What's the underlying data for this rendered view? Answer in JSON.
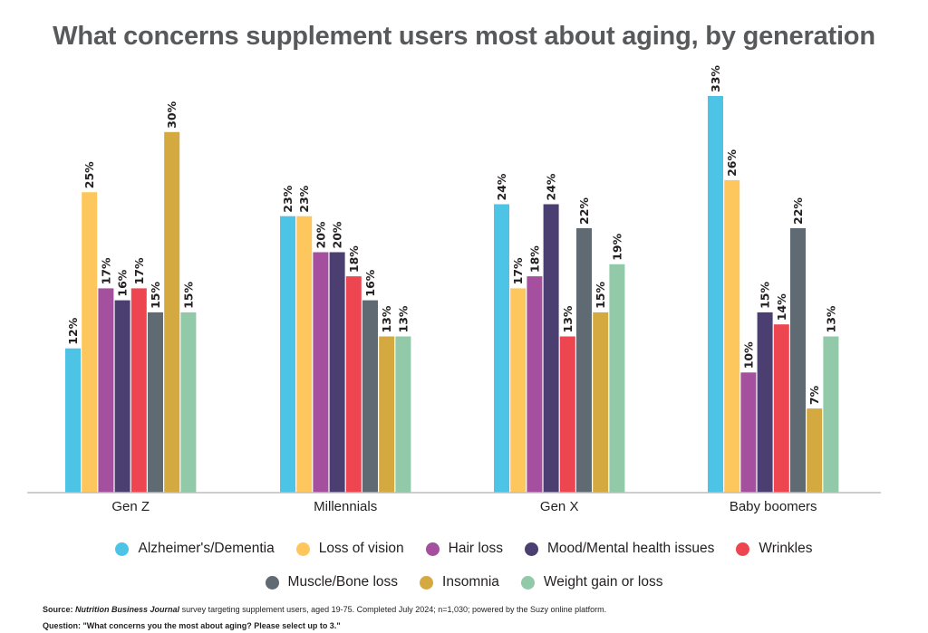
{
  "chart_data": {
    "type": "bar",
    "title": "What concerns supplement users most about aging, by generation",
    "categories": [
      "Gen Z",
      "Millennials",
      "Gen X",
      "Baby boomers"
    ],
    "series": [
      {
        "name": "Alzheimer's/Dementia",
        "color": "#4dc3e6",
        "values": [
          12,
          23,
          24,
          33
        ]
      },
      {
        "name": "Loss of vision",
        "color": "#fec75e",
        "values": [
          25,
          23,
          17,
          26
        ]
      },
      {
        "name": "Hair loss",
        "color": "#a5509e",
        "values": [
          17,
          20,
          18,
          10
        ]
      },
      {
        "name": "Mood/Mental health issues",
        "color": "#4b3f72",
        "values": [
          16,
          20,
          24,
          15
        ]
      },
      {
        "name": "Wrinkles",
        "color": "#ee4651",
        "values": [
          17,
          18,
          13,
          14
        ]
      },
      {
        "name": "Muscle/Bone loss",
        "color": "#5f6a72",
        "values": [
          15,
          16,
          22,
          22
        ]
      },
      {
        "name": "Insomnia",
        "color": "#d4a93f",
        "values": [
          30,
          13,
          15,
          7
        ]
      },
      {
        "name": "Weight gain or loss",
        "color": "#92c9a9",
        "values": [
          15,
          13,
          19,
          13
        ]
      }
    ],
    "value_suffix": "%",
    "ylim": [
      0,
      33
    ],
    "grid": false,
    "legend_position": "bottom"
  },
  "footer": {
    "source_label": "Source:",
    "source_pub": "Nutrition Business Journal",
    "source_text": "survey targeting supplement users, aged 19-75. Completed July 2024;  n=1,030; powered by the Suzy online platform.",
    "question_text": "Question: \"What concerns you the most about aging? Please select up to 3.\""
  }
}
